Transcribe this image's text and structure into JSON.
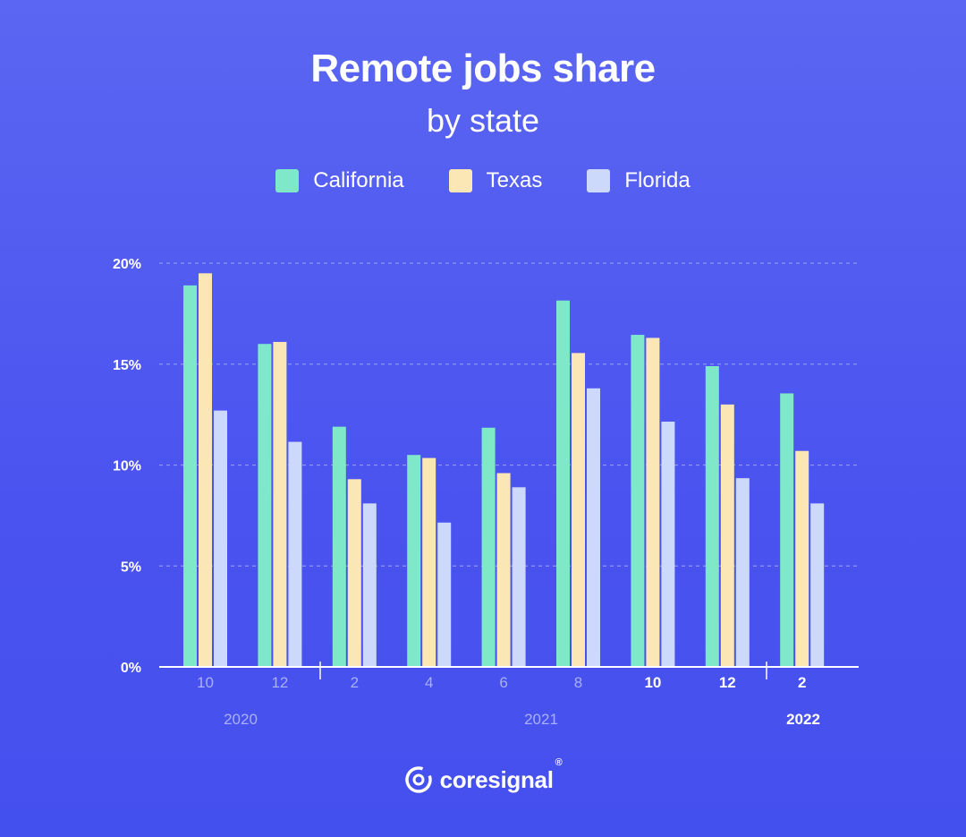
{
  "title": "Remote jobs share",
  "subtitle": "by state",
  "brand": {
    "name": "coresignal",
    "mark": "®"
  },
  "colors": {
    "California": "#7fe8c8",
    "Texas": "#fbe6b5",
    "Florida": "#ccd9fb",
    "grid": "#8f97f6",
    "axis": "#ffffff",
    "tick_muted": "#a9b1fb",
    "tick_bright": "#ffffff"
  },
  "chart_data": {
    "type": "bar",
    "categories": [
      "10",
      "12",
      "2",
      "4",
      "6",
      "8",
      "10",
      "12",
      "2"
    ],
    "year_labels": [
      "2020",
      "2021",
      "2022"
    ],
    "series": [
      {
        "name": "California",
        "values": [
          18.9,
          16.0,
          11.9,
          10.5,
          11.85,
          18.15,
          16.45,
          14.9,
          13.55
        ]
      },
      {
        "name": "Texas",
        "values": [
          19.5,
          16.1,
          9.3,
          10.35,
          9.6,
          15.55,
          16.3,
          13.0,
          10.7
        ]
      },
      {
        "name": "Florida",
        "values": [
          12.7,
          11.15,
          8.1,
          7.15,
          8.9,
          13.8,
          12.15,
          9.35,
          8.1
        ]
      }
    ],
    "yticks": [
      "0%",
      "5%",
      "10%",
      "15%",
      "20%"
    ],
    "ylim": [
      0,
      20
    ],
    "grid": true,
    "legend_position": "top-center"
  }
}
